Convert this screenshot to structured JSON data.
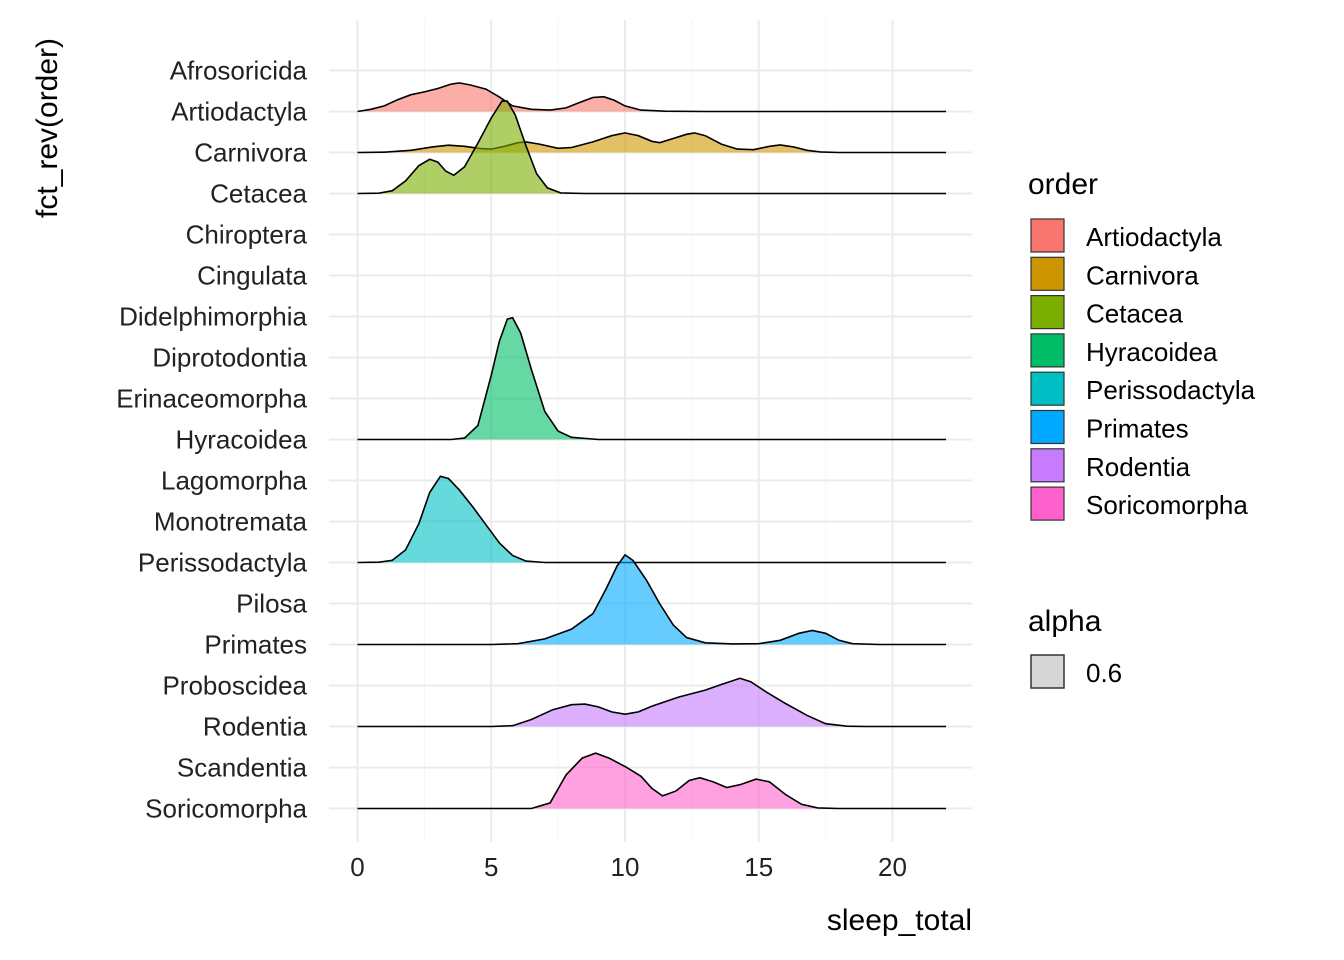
{
  "chart_data": {
    "type": "area",
    "subtype": "ridgeline",
    "xlabel": "sleep_total",
    "ylabel": "fct_rev(order)",
    "xlim": [
      -1,
      23
    ],
    "x_ticks": [
      0,
      5,
      10,
      15,
      20
    ],
    "x_ticks_minor": [
      2.5,
      7.5,
      12.5,
      17.5
    ],
    "x_tick_labels": [
      "0",
      "5",
      "10",
      "15",
      "20"
    ],
    "categories": [
      "Soricomorpha",
      "Scandentia",
      "Rodentia",
      "Proboscidea",
      "Primates",
      "Pilosa",
      "Perissodactyla",
      "Monotremata",
      "Lagomorpha",
      "Hyracoidea",
      "Erinaceomorpha",
      "Diprotodontia",
      "Didelphimorphia",
      "Cingulata",
      "Chiroptera",
      "Cetacea",
      "Carnivora",
      "Artiodactyla",
      "Afrosoricida"
    ],
    "grid": true,
    "fill_alpha": 0.6,
    "legend_position": "right",
    "legend": {
      "fill_title": "order",
      "alpha_title": "alpha",
      "alpha_value": "0.6"
    },
    "series": [
      {
        "name": "Artiodactyla",
        "color": "#F8766D",
        "baseline_category": "Artiodactyla",
        "points": [
          [
            0,
            0.0
          ],
          [
            0.5,
            0.08
          ],
          [
            1.0,
            0.2
          ],
          [
            1.5,
            0.42
          ],
          [
            2.0,
            0.6
          ],
          [
            2.5,
            0.7
          ],
          [
            3.0,
            0.82
          ],
          [
            3.5,
            0.98
          ],
          [
            3.8,
            1.02
          ],
          [
            4.2,
            0.95
          ],
          [
            4.8,
            0.8
          ],
          [
            5.3,
            0.52
          ],
          [
            5.8,
            0.2
          ],
          [
            6.5,
            0.08
          ],
          [
            7.2,
            0.05
          ],
          [
            7.8,
            0.13
          ],
          [
            8.3,
            0.32
          ],
          [
            8.8,
            0.5
          ],
          [
            9.2,
            0.53
          ],
          [
            9.6,
            0.4
          ],
          [
            10.0,
            0.2
          ],
          [
            10.6,
            0.05
          ],
          [
            11.5,
            0.01
          ],
          [
            13.0,
            0.0
          ],
          [
            22,
            0.0
          ]
        ]
      },
      {
        "name": "Carnivora",
        "color": "#CD9600",
        "baseline_category": "Carnivora",
        "points": [
          [
            0,
            0.0
          ],
          [
            1.0,
            0.01
          ],
          [
            2.0,
            0.08
          ],
          [
            2.8,
            0.2
          ],
          [
            3.4,
            0.26
          ],
          [
            4.0,
            0.22
          ],
          [
            4.6,
            0.14
          ],
          [
            5.0,
            0.12
          ],
          [
            5.5,
            0.22
          ],
          [
            6.0,
            0.35
          ],
          [
            6.3,
            0.38
          ],
          [
            6.8,
            0.3
          ],
          [
            7.5,
            0.15
          ],
          [
            8.0,
            0.18
          ],
          [
            8.8,
            0.38
          ],
          [
            9.5,
            0.6
          ],
          [
            10.0,
            0.7
          ],
          [
            10.5,
            0.6
          ],
          [
            11.0,
            0.4
          ],
          [
            11.3,
            0.35
          ],
          [
            11.8,
            0.5
          ],
          [
            12.3,
            0.65
          ],
          [
            12.6,
            0.7
          ],
          [
            13.0,
            0.6
          ],
          [
            13.6,
            0.3
          ],
          [
            14.2,
            0.12
          ],
          [
            14.8,
            0.1
          ],
          [
            15.4,
            0.22
          ],
          [
            15.8,
            0.27
          ],
          [
            16.3,
            0.2
          ],
          [
            16.8,
            0.08
          ],
          [
            17.3,
            0.02
          ],
          [
            18.0,
            0.0
          ],
          [
            22,
            0.0
          ]
        ]
      },
      {
        "name": "Cetacea",
        "color": "#7CAE00",
        "baseline_category": "Cetacea",
        "points": [
          [
            0,
            0.0
          ],
          [
            0.8,
            0.01
          ],
          [
            1.3,
            0.1
          ],
          [
            1.8,
            0.45
          ],
          [
            2.3,
            1.0
          ],
          [
            2.7,
            1.22
          ],
          [
            3.0,
            1.12
          ],
          [
            3.3,
            0.8
          ],
          [
            3.6,
            0.65
          ],
          [
            4.0,
            0.95
          ],
          [
            4.5,
            1.8
          ],
          [
            5.0,
            2.7
          ],
          [
            5.4,
            3.3
          ],
          [
            5.6,
            3.3
          ],
          [
            5.9,
            2.8
          ],
          [
            6.3,
            1.7
          ],
          [
            6.7,
            0.7
          ],
          [
            7.1,
            0.2
          ],
          [
            7.6,
            0.02
          ],
          [
            8.5,
            0.0
          ],
          [
            22,
            0.0
          ]
        ]
      },
      {
        "name": "Hyracoidea",
        "color": "#00BE67",
        "baseline_category": "Hyracoidea",
        "points": [
          [
            0,
            0.0
          ],
          [
            3.5,
            0.0
          ],
          [
            4.0,
            0.05
          ],
          [
            4.5,
            0.5
          ],
          [
            5.0,
            2.3
          ],
          [
            5.3,
            3.5
          ],
          [
            5.6,
            4.3
          ],
          [
            5.8,
            4.35
          ],
          [
            6.1,
            3.8
          ],
          [
            6.5,
            2.5
          ],
          [
            7.0,
            1.0
          ],
          [
            7.5,
            0.3
          ],
          [
            8.0,
            0.08
          ],
          [
            9.0,
            0.0
          ],
          [
            22,
            0.0
          ]
        ]
      },
      {
        "name": "Perissodactyla",
        "color": "#00BFC4",
        "baseline_category": "Perissodactyla",
        "points": [
          [
            0,
            0.0
          ],
          [
            0.8,
            0.01
          ],
          [
            1.3,
            0.08
          ],
          [
            1.8,
            0.45
          ],
          [
            2.3,
            1.4
          ],
          [
            2.7,
            2.5
          ],
          [
            3.1,
            3.08
          ],
          [
            3.4,
            3.0
          ],
          [
            3.8,
            2.6
          ],
          [
            4.3,
            2.0
          ],
          [
            4.8,
            1.35
          ],
          [
            5.3,
            0.7
          ],
          [
            5.8,
            0.25
          ],
          [
            6.3,
            0.05
          ],
          [
            7.0,
            0.0
          ],
          [
            22,
            0.0
          ]
        ]
      },
      {
        "name": "Primates",
        "color": "#00A9FF",
        "baseline_category": "Primates",
        "points": [
          [
            0,
            0.0
          ],
          [
            5.0,
            0.0
          ],
          [
            6.0,
            0.03
          ],
          [
            7.0,
            0.2
          ],
          [
            8.0,
            0.55
          ],
          [
            8.8,
            1.1
          ],
          [
            9.3,
            2.0
          ],
          [
            9.7,
            2.8
          ],
          [
            10.0,
            3.2
          ],
          [
            10.3,
            3.0
          ],
          [
            10.8,
            2.3
          ],
          [
            11.3,
            1.45
          ],
          [
            11.8,
            0.7
          ],
          [
            12.3,
            0.25
          ],
          [
            13.0,
            0.06
          ],
          [
            14.0,
            0.02
          ],
          [
            15.0,
            0.03
          ],
          [
            15.8,
            0.15
          ],
          [
            16.5,
            0.4
          ],
          [
            17.0,
            0.5
          ],
          [
            17.5,
            0.4
          ],
          [
            18.0,
            0.15
          ],
          [
            18.5,
            0.03
          ],
          [
            19.5,
            0.0
          ],
          [
            22,
            0.0
          ]
        ]
      },
      {
        "name": "Rodentia",
        "color": "#C77CFF",
        "baseline_category": "Rodentia",
        "points": [
          [
            0,
            0.0
          ],
          [
            5.0,
            0.0
          ],
          [
            5.8,
            0.03
          ],
          [
            6.5,
            0.25
          ],
          [
            7.3,
            0.6
          ],
          [
            8.0,
            0.78
          ],
          [
            8.5,
            0.8
          ],
          [
            9.0,
            0.7
          ],
          [
            9.5,
            0.52
          ],
          [
            10.0,
            0.44
          ],
          [
            10.5,
            0.52
          ],
          [
            11.0,
            0.72
          ],
          [
            12.0,
            1.05
          ],
          [
            13.0,
            1.3
          ],
          [
            13.6,
            1.5
          ],
          [
            14.3,
            1.72
          ],
          [
            14.7,
            1.6
          ],
          [
            15.3,
            1.22
          ],
          [
            16.0,
            0.82
          ],
          [
            16.8,
            0.4
          ],
          [
            17.5,
            0.1
          ],
          [
            18.3,
            0.01
          ],
          [
            19.0,
            0.0
          ],
          [
            22,
            0.0
          ]
        ]
      },
      {
        "name": "Soricomorpha",
        "color": "#FF61CC",
        "baseline_category": "Soricomorpha",
        "points": [
          [
            0,
            0.0
          ],
          [
            6.5,
            0.0
          ],
          [
            7.2,
            0.2
          ],
          [
            7.8,
            1.2
          ],
          [
            8.4,
            1.8
          ],
          [
            8.9,
            1.98
          ],
          [
            9.4,
            1.8
          ],
          [
            10.0,
            1.5
          ],
          [
            10.6,
            1.15
          ],
          [
            11.0,
            0.72
          ],
          [
            11.4,
            0.45
          ],
          [
            11.9,
            0.62
          ],
          [
            12.4,
            1.0
          ],
          [
            12.8,
            1.1
          ],
          [
            13.3,
            0.95
          ],
          [
            13.8,
            0.75
          ],
          [
            14.3,
            0.85
          ],
          [
            14.9,
            1.05
          ],
          [
            15.4,
            0.95
          ],
          [
            16.0,
            0.5
          ],
          [
            16.6,
            0.15
          ],
          [
            17.2,
            0.02
          ],
          [
            18.0,
            0.0
          ],
          [
            22,
            0.0
          ]
        ]
      }
    ]
  }
}
